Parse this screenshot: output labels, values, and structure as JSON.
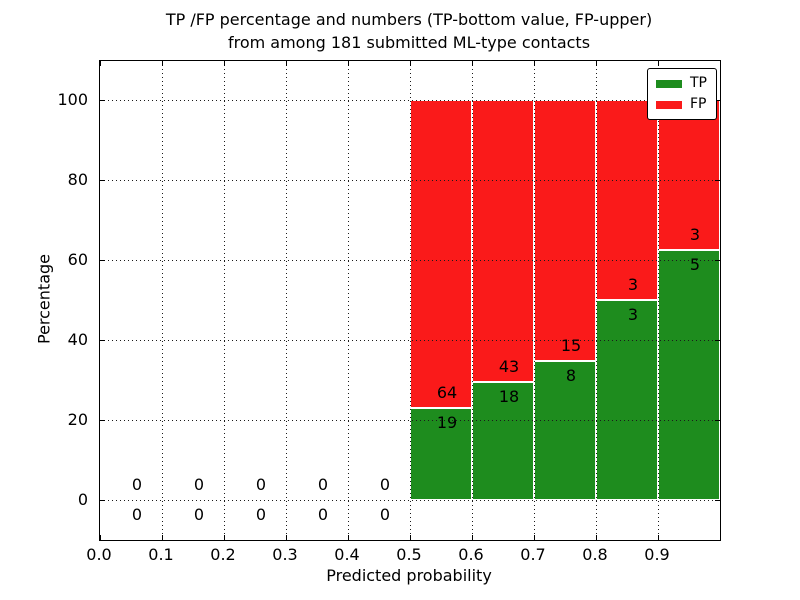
{
  "chart_data": {
    "type": "bar",
    "subtype": "stacked-percentage-histogram",
    "title_line1": "TP /FP percentage and numbers (TP-bottom value, FP-upper)",
    "title_line2": "from among 181 submitted ML-type contacts",
    "total_submitted": 181,
    "xlabel": "Predicted probability",
    "ylabel": "Percentage",
    "xlim": [
      0.0,
      1.0
    ],
    "ylim": [
      -10,
      110
    ],
    "grid": "dotted",
    "xtick_values": [
      0.0,
      0.1,
      0.2,
      0.3,
      0.4,
      0.5,
      0.6,
      0.7,
      0.8,
      0.9
    ],
    "xtick_labels": [
      "0.0",
      "0.1",
      "0.2",
      "0.3",
      "0.4",
      "0.5",
      "0.6",
      "0.7",
      "0.8",
      "0.9"
    ],
    "ytick_values": [
      0,
      20,
      40,
      60,
      80,
      100
    ],
    "ytick_labels": [
      "0",
      "20",
      "40",
      "60",
      "80",
      "100"
    ],
    "legend": {
      "position": "upper-right",
      "entries": [
        {
          "label": "TP",
          "color": "#1e8c1e"
        },
        {
          "label": "FP",
          "color": "#fa1a1a"
        }
      ]
    },
    "colors": {
      "tp": "#1e8c1e",
      "fp": "#fa1a1a",
      "bar_edge": "#ffffff"
    },
    "bin_width": 0.1,
    "bins": [
      {
        "x0": 0.0,
        "x1": 0.1,
        "tp": 0,
        "fp": 0
      },
      {
        "x0": 0.1,
        "x1": 0.2,
        "tp": 0,
        "fp": 0
      },
      {
        "x0": 0.2,
        "x1": 0.3,
        "tp": 0,
        "fp": 0
      },
      {
        "x0": 0.3,
        "x1": 0.4,
        "tp": 0,
        "fp": 0
      },
      {
        "x0": 0.4,
        "x1": 0.5,
        "tp": 0,
        "fp": 0
      },
      {
        "x0": 0.5,
        "x1": 0.6,
        "tp": 19,
        "fp": 64
      },
      {
        "x0": 0.6,
        "x1": 0.7,
        "tp": 18,
        "fp": 43
      },
      {
        "x0": 0.7,
        "x1": 0.8,
        "tp": 8,
        "fp": 15
      },
      {
        "x0": 0.8,
        "x1": 0.9,
        "tp": 3,
        "fp": 3
      },
      {
        "x0": 0.9,
        "x1": 1.0,
        "tp": 5,
        "fp": 3
      }
    ]
  }
}
